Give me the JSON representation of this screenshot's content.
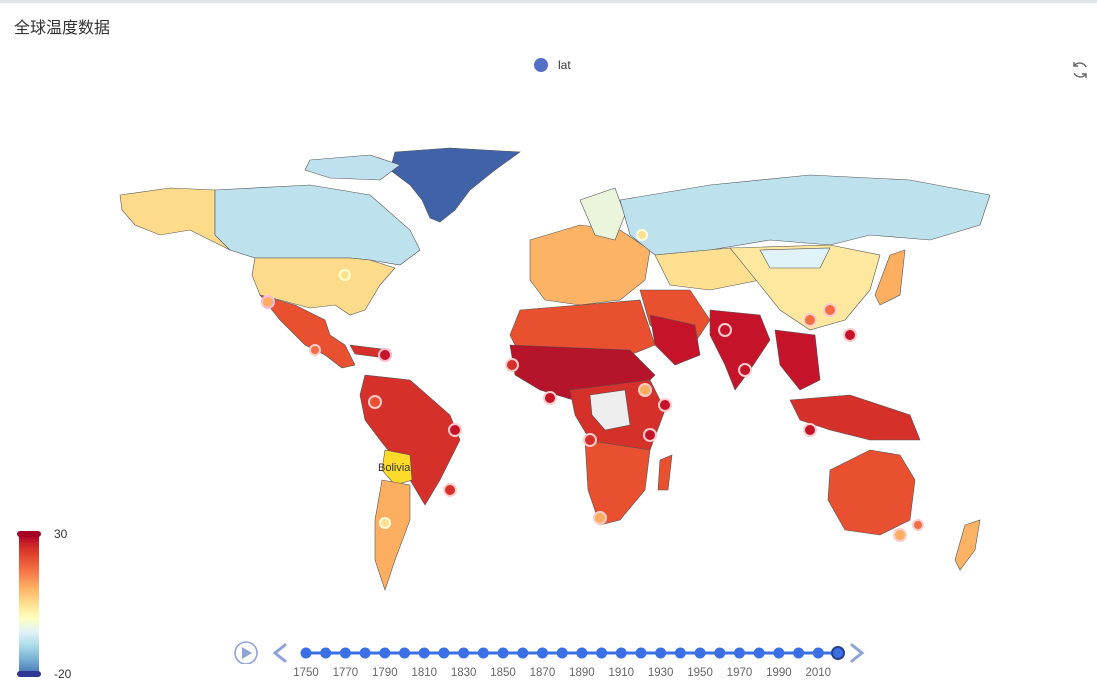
{
  "title": "全球温度数据",
  "legend": {
    "label": "lat",
    "color": "#5470c6"
  },
  "toolbox": {
    "icon": "refresh-icon"
  },
  "visual_map": {
    "max": "30",
    "min": "-20",
    "colors": [
      "#313695",
      "#4575b4",
      "#74add1",
      "#abd9e9",
      "#e0f3f8",
      "#ffffbf",
      "#fee090",
      "#fdae61",
      "#f46d43",
      "#d73027",
      "#a50026"
    ]
  },
  "highlighted_country": "Bolivia",
  "timeline": {
    "labels": [
      "1750",
      "1770",
      "1790",
      "1810",
      "1830",
      "1850",
      "1870",
      "1890",
      "1910",
      "1930",
      "1950",
      "1970",
      "1990",
      "2010"
    ],
    "point_count": 28,
    "current_index": 27,
    "color": "#3a6fe5"
  },
  "chart_data": {
    "type": "map",
    "region": "world",
    "series_name": "lat",
    "value_range": [
      -20,
      30
    ],
    "highlight": "Bolivia",
    "timeline_start": 1750,
    "timeline_end": 2013,
    "current_year_index": 27
  }
}
